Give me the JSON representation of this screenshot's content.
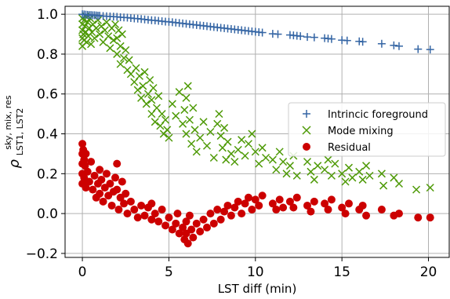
{
  "chart_data": {
    "type": "scatter",
    "xlabel": "LST diff (min)",
    "ylabel": {
      "main": "ρ",
      "sup": "sky, mix, res",
      "sub": "LST1, LST2"
    },
    "xlim": [
      -1,
      21.2
    ],
    "ylim": [
      -0.22,
      1.04
    ],
    "xticks": [
      0,
      5,
      10,
      15,
      20
    ],
    "yticks": [
      -0.2,
      0.0,
      0.2,
      0.4,
      0.6,
      0.8,
      1.0
    ],
    "ytick_labels": [
      "−0.2",
      "0.0",
      "0.2",
      "0.4",
      "0.6",
      "0.8",
      "1.0"
    ],
    "grid": true,
    "legend_position": "center-right",
    "series": [
      {
        "name": "Intrincic foreground",
        "marker": "plus",
        "color": "#3465a4",
        "points": [
          [
            0.0,
            1.0
          ],
          [
            0.1,
            0.999
          ],
          [
            0.2,
            0.998
          ],
          [
            0.3,
            0.997
          ],
          [
            0.4,
            0.996
          ],
          [
            0.5,
            0.996
          ],
          [
            0.6,
            0.995
          ],
          [
            0.7,
            0.995
          ],
          [
            0.8,
            0.994
          ],
          [
            0.9,
            0.993
          ],
          [
            1.0,
            0.993
          ],
          [
            1.2,
            0.991
          ],
          [
            1.4,
            0.99
          ],
          [
            1.6,
            0.989
          ],
          [
            1.8,
            0.988
          ],
          [
            2.0,
            0.987
          ],
          [
            2.2,
            0.985
          ],
          [
            2.4,
            0.984
          ],
          [
            2.6,
            0.983
          ],
          [
            2.8,
            0.981
          ],
          [
            3.0,
            0.979
          ],
          [
            3.2,
            0.978
          ],
          [
            3.4,
            0.976
          ],
          [
            3.6,
            0.974
          ],
          [
            3.8,
            0.972
          ],
          [
            4.0,
            0.97
          ],
          [
            4.2,
            0.969
          ],
          [
            4.4,
            0.967
          ],
          [
            4.6,
            0.965
          ],
          [
            4.8,
            0.963
          ],
          [
            5.0,
            0.962
          ],
          [
            5.2,
            0.96
          ],
          [
            5.4,
            0.958
          ],
          [
            5.6,
            0.956
          ],
          [
            5.8,
            0.954
          ],
          [
            6.0,
            0.952
          ],
          [
            6.2,
            0.95
          ],
          [
            6.4,
            0.948
          ],
          [
            6.6,
            0.946
          ],
          [
            6.8,
            0.944
          ],
          [
            7.0,
            0.942
          ],
          [
            7.2,
            0.94
          ],
          [
            7.4,
            0.938
          ],
          [
            7.6,
            0.936
          ],
          [
            7.8,
            0.934
          ],
          [
            8.0,
            0.932
          ],
          [
            8.2,
            0.93
          ],
          [
            8.4,
            0.928
          ],
          [
            8.6,
            0.926
          ],
          [
            8.8,
            0.924
          ],
          [
            9.0,
            0.922
          ],
          [
            9.2,
            0.92
          ],
          [
            9.4,
            0.918
          ],
          [
            9.6,
            0.916
          ],
          [
            9.8,
            0.914
          ],
          [
            10.0,
            0.912
          ],
          [
            10.2,
            0.91
          ],
          [
            10.4,
            0.908
          ],
          [
            11.0,
            0.902
          ],
          [
            11.3,
            0.9
          ],
          [
            12.0,
            0.896
          ],
          [
            12.2,
            0.894
          ],
          [
            12.4,
            0.892
          ],
          [
            12.6,
            0.89
          ],
          [
            13.0,
            0.886
          ],
          [
            13.4,
            0.884
          ],
          [
            14.0,
            0.88
          ],
          [
            14.2,
            0.878
          ],
          [
            14.4,
            0.876
          ],
          [
            15.0,
            0.87
          ],
          [
            15.3,
            0.868
          ],
          [
            16.0,
            0.864
          ],
          [
            16.2,
            0.862
          ],
          [
            17.3,
            0.852
          ],
          [
            18.0,
            0.844
          ],
          [
            18.3,
            0.84
          ],
          [
            19.4,
            0.825
          ],
          [
            20.1,
            0.823
          ]
        ]
      },
      {
        "name": "Mode mixing",
        "marker": "x",
        "color": "#4e9a06",
        "points": [
          [
            0.0,
            0.98
          ],
          [
            0.0,
            0.95
          ],
          [
            0.0,
            0.92
          ],
          [
            0.0,
            0.88
          ],
          [
            0.0,
            0.84
          ],
          [
            0.05,
            0.9
          ],
          [
            0.1,
            0.97
          ],
          [
            0.1,
            0.87
          ],
          [
            0.15,
            0.94
          ],
          [
            0.2,
            0.99
          ],
          [
            0.2,
            0.91
          ],
          [
            0.25,
            0.86
          ],
          [
            0.3,
            0.96
          ],
          [
            0.35,
            0.89
          ],
          [
            0.4,
            0.93
          ],
          [
            0.45,
            0.98
          ],
          [
            0.5,
            0.85
          ],
          [
            0.55,
            0.91
          ],
          [
            0.6,
            0.95
          ],
          [
            0.7,
            0.88
          ],
          [
            0.8,
            0.93
          ],
          [
            0.9,
            0.97
          ],
          [
            1.0,
            0.9
          ],
          [
            1.1,
            0.94
          ],
          [
            1.2,
            0.86
          ],
          [
            1.3,
            0.92
          ],
          [
            1.4,
            0.96
          ],
          [
            1.5,
            0.89
          ],
          [
            1.6,
            0.83
          ],
          [
            1.7,
            0.93
          ],
          [
            1.8,
            0.87
          ],
          [
            1.9,
            0.95
          ],
          [
            2.0,
            0.8
          ],
          [
            2.0,
            0.88
          ],
          [
            2.1,
            0.92
          ],
          [
            2.2,
            0.84
          ],
          [
            2.2,
            0.75
          ],
          [
            2.3,
            0.9
          ],
          [
            2.4,
            0.78
          ],
          [
            2.5,
            0.82
          ],
          [
            2.6,
            0.72
          ],
          [
            2.7,
            0.77
          ],
          [
            2.8,
            0.7
          ],
          [
            3.0,
            0.66
          ],
          [
            3.1,
            0.73
          ],
          [
            3.2,
            0.62
          ],
          [
            3.3,
            0.69
          ],
          [
            3.4,
            0.58
          ],
          [
            3.5,
            0.64
          ],
          [
            3.6,
            0.71
          ],
          [
            3.7,
            0.55
          ],
          [
            3.8,
            0.6
          ],
          [
            3.9,
            0.67
          ],
          [
            4.0,
            0.5
          ],
          [
            4.0,
            0.57
          ],
          [
            4.1,
            0.63
          ],
          [
            4.2,
            0.46
          ],
          [
            4.3,
            0.53
          ],
          [
            4.4,
            0.59
          ],
          [
            4.5,
            0.44
          ],
          [
            4.6,
            0.5
          ],
          [
            4.7,
            0.4
          ],
          [
            4.8,
            0.47
          ],
          [
            4.9,
            0.42
          ],
          [
            5.0,
            0.38
          ],
          [
            5.2,
            0.55
          ],
          [
            5.4,
            0.49
          ],
          [
            5.6,
            0.61
          ],
          [
            5.8,
            0.45
          ],
          [
            5.9,
            0.52
          ],
          [
            6.0,
            0.58
          ],
          [
            6.0,
            0.4
          ],
          [
            6.1,
            0.64
          ],
          [
            6.2,
            0.47
          ],
          [
            6.3,
            0.35
          ],
          [
            6.4,
            0.53
          ],
          [
            6.5,
            0.42
          ],
          [
            6.6,
            0.31
          ],
          [
            6.8,
            0.38
          ],
          [
            7.0,
            0.46
          ],
          [
            7.2,
            0.34
          ],
          [
            7.4,
            0.41
          ],
          [
            7.6,
            0.28
          ],
          [
            7.8,
            0.45
          ],
          [
            7.9,
            0.5
          ],
          [
            8.0,
            0.39
          ],
          [
            8.1,
            0.33
          ],
          [
            8.2,
            0.43
          ],
          [
            8.3,
            0.27
          ],
          [
            8.4,
            0.36
          ],
          [
            8.6,
            0.3
          ],
          [
            8.8,
            0.26
          ],
          [
            9.0,
            0.32
          ],
          [
            9.2,
            0.37
          ],
          [
            9.4,
            0.29
          ],
          [
            9.6,
            0.35
          ],
          [
            9.8,
            0.4
          ],
          [
            10.0,
            0.31
          ],
          [
            10.2,
            0.25
          ],
          [
            10.4,
            0.33
          ],
          [
            10.6,
            0.28
          ],
          [
            11.0,
            0.27
          ],
          [
            11.2,
            0.22
          ],
          [
            11.4,
            0.31
          ],
          [
            11.6,
            0.26
          ],
          [
            11.8,
            0.2
          ],
          [
            12.0,
            0.24
          ],
          [
            12.2,
            0.29
          ],
          [
            12.4,
            0.19
          ],
          [
            13.0,
            0.26
          ],
          [
            13.2,
            0.21
          ],
          [
            13.4,
            0.17
          ],
          [
            13.6,
            0.24
          ],
          [
            14.0,
            0.22
          ],
          [
            14.2,
            0.27
          ],
          [
            14.4,
            0.19
          ],
          [
            14.6,
            0.25
          ],
          [
            15.0,
            0.2
          ],
          [
            15.2,
            0.16
          ],
          [
            15.4,
            0.23
          ],
          [
            15.6,
            0.18
          ],
          [
            16.0,
            0.21
          ],
          [
            16.2,
            0.17
          ],
          [
            16.4,
            0.24
          ],
          [
            16.6,
            0.19
          ],
          [
            17.3,
            0.2
          ],
          [
            17.4,
            0.14
          ],
          [
            18.0,
            0.18
          ],
          [
            18.3,
            0.15
          ],
          [
            19.3,
            0.12
          ],
          [
            20.1,
            0.13
          ]
        ]
      },
      {
        "name": "Residual",
        "marker": "circle",
        "color": "#cc0000",
        "points": [
          [
            0.0,
            0.35
          ],
          [
            0.0,
            0.3
          ],
          [
            0.0,
            0.25
          ],
          [
            0.0,
            0.2
          ],
          [
            0.0,
            0.15
          ],
          [
            0.05,
            0.32
          ],
          [
            0.1,
            0.27
          ],
          [
            0.1,
            0.18
          ],
          [
            0.15,
            0.24
          ],
          [
            0.2,
            0.3
          ],
          [
            0.2,
            0.13
          ],
          [
            0.3,
            0.21
          ],
          [
            0.4,
            0.16
          ],
          [
            0.5,
            0.26
          ],
          [
            0.6,
            0.12
          ],
          [
            0.7,
            0.19
          ],
          [
            0.8,
            0.08
          ],
          [
            0.9,
            0.15
          ],
          [
            1.0,
            0.22
          ],
          [
            1.0,
            0.1
          ],
          [
            1.1,
            0.17
          ],
          [
            1.2,
            0.06
          ],
          [
            1.3,
            0.13
          ],
          [
            1.4,
            0.2
          ],
          [
            1.5,
            0.09
          ],
          [
            1.6,
            0.15
          ],
          [
            1.7,
            0.04
          ],
          [
            1.8,
            0.11
          ],
          [
            1.9,
            0.18
          ],
          [
            2.0,
            0.25
          ],
          [
            2.0,
            0.12
          ],
          [
            2.1,
            0.02
          ],
          [
            2.2,
            0.08
          ],
          [
            2.3,
            0.16
          ],
          [
            2.4,
            0.05
          ],
          [
            2.5,
            0.1
          ],
          [
            2.6,
            0.0
          ],
          [
            2.8,
            0.06
          ],
          [
            3.0,
            0.02
          ],
          [
            3.2,
            -0.02
          ],
          [
            3.4,
            0.04
          ],
          [
            3.6,
            -0.01
          ],
          [
            3.8,
            0.03
          ],
          [
            4.0,
            -0.03
          ],
          [
            4.0,
            0.05
          ],
          [
            4.2,
            0.0
          ],
          [
            4.4,
            -0.04
          ],
          [
            4.6,
            0.02
          ],
          [
            4.8,
            -0.06
          ],
          [
            5.0,
            -0.02
          ],
          [
            5.2,
            -0.08
          ],
          [
            5.4,
            -0.05
          ],
          [
            5.5,
            0.0
          ],
          [
            5.6,
            -0.1
          ],
          [
            5.8,
            -0.07
          ],
          [
            5.9,
            -0.13
          ],
          [
            6.0,
            -0.04
          ],
          [
            6.0,
            -0.1
          ],
          [
            6.1,
            -0.15
          ],
          [
            6.2,
            -0.01
          ],
          [
            6.3,
            -0.08
          ],
          [
            6.4,
            -0.12
          ],
          [
            6.6,
            -0.05
          ],
          [
            6.8,
            -0.09
          ],
          [
            7.0,
            -0.03
          ],
          [
            7.2,
            -0.07
          ],
          [
            7.4,
            0.0
          ],
          [
            7.6,
            -0.05
          ],
          [
            7.8,
            0.02
          ],
          [
            8.0,
            -0.03
          ],
          [
            8.2,
            0.01
          ],
          [
            8.4,
            0.04
          ],
          [
            8.6,
            -0.01
          ],
          [
            8.8,
            0.03
          ],
          [
            9.0,
            0.06
          ],
          [
            9.2,
            0.0
          ],
          [
            9.4,
            0.05
          ],
          [
            9.6,
            0.08
          ],
          [
            9.8,
            0.02
          ],
          [
            10.0,
            0.07
          ],
          [
            10.2,
            0.04
          ],
          [
            10.4,
            0.09
          ],
          [
            11.0,
            0.05
          ],
          [
            11.2,
            0.02
          ],
          [
            11.4,
            0.07
          ],
          [
            11.6,
            0.03
          ],
          [
            12.0,
            0.06
          ],
          [
            12.2,
            0.03
          ],
          [
            12.4,
            0.08
          ],
          [
            13.0,
            0.04
          ],
          [
            13.2,
            0.01
          ],
          [
            13.4,
            0.06
          ],
          [
            14.0,
            0.05
          ],
          [
            14.2,
            0.02
          ],
          [
            14.4,
            0.07
          ],
          [
            15.0,
            0.03
          ],
          [
            15.2,
            0.0
          ],
          [
            15.4,
            0.05
          ],
          [
            16.0,
            0.02
          ],
          [
            16.2,
            0.04
          ],
          [
            16.4,
            -0.01
          ],
          [
            17.3,
            0.02
          ],
          [
            18.0,
            -0.01
          ],
          [
            18.3,
            0.0
          ],
          [
            19.4,
            -0.02
          ],
          [
            20.1,
            -0.02
          ]
        ]
      }
    ]
  }
}
